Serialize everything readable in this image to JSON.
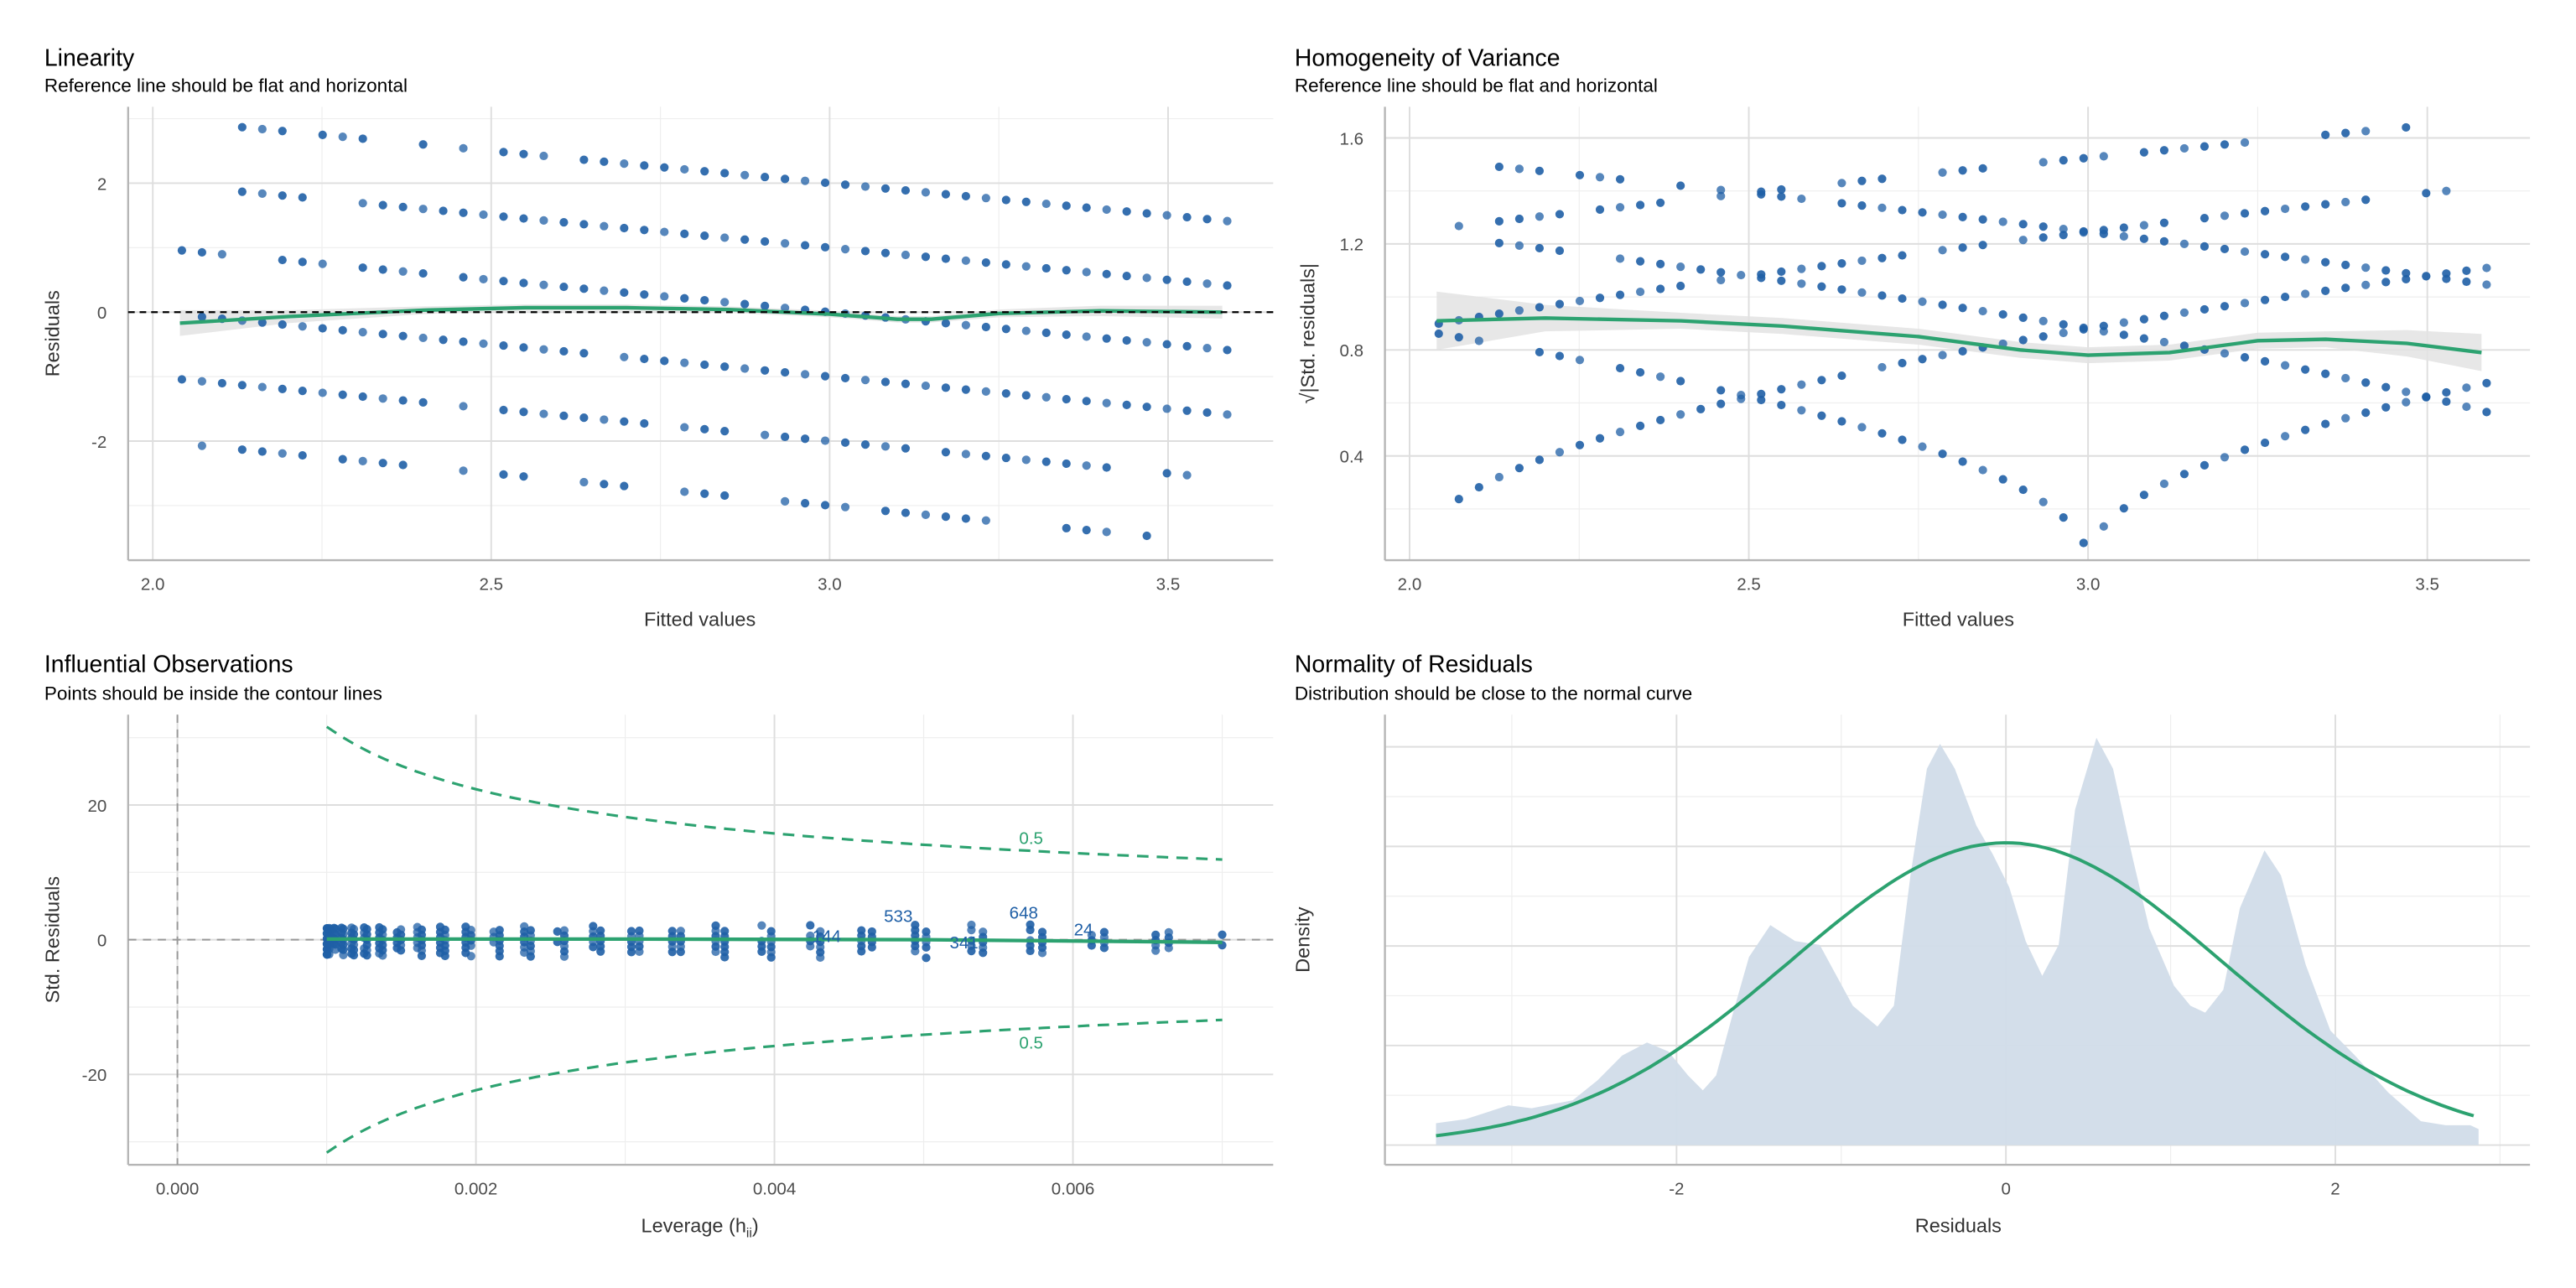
{
  "chart_data": [
    {
      "type": "scatter",
      "title": "Linearity",
      "subtitle": "Reference line should be flat and horizontal",
      "xlabel": "Fitted values",
      "ylabel": "Residuals",
      "xticks": [
        "2.0",
        "2.5",
        "3.0",
        "3.5"
      ],
      "xtick_values": [
        2.0,
        2.5,
        3.0,
        3.5
      ],
      "yticks": [
        "-2",
        "0",
        "2"
      ],
      "ytick_values": [
        -2,
        0,
        2
      ],
      "fitted_start": 2.043,
      "fitted_step": 0.0297,
      "fitted_count": 53,
      "observed_levels": {
        "5": [
          [
            3,
            5
          ],
          [
            7,
            9
          ],
          [
            12,
            12
          ],
          [
            14,
            14
          ],
          [
            16,
            18
          ],
          [
            20,
            52
          ]
        ],
        "4": [
          [
            3,
            6
          ],
          [
            9,
            52
          ]
        ],
        "3": [
          [
            0,
            2
          ],
          [
            5,
            7
          ],
          [
            9,
            12
          ],
          [
            14,
            52
          ]
        ],
        "2": [
          [
            1,
            20
          ],
          [
            22,
            52
          ]
        ],
        "1": [
          [
            0,
            12
          ],
          [
            14,
            14
          ],
          [
            16,
            23
          ],
          [
            25,
            27
          ],
          [
            29,
            36
          ],
          [
            38,
            46
          ],
          [
            49,
            50
          ]
        ],
        "0": [
          [
            1,
            1
          ],
          [
            3,
            6
          ],
          [
            8,
            11
          ],
          [
            14,
            14
          ],
          [
            16,
            17
          ],
          [
            20,
            22
          ],
          [
            25,
            27
          ],
          [
            30,
            33
          ],
          [
            35,
            40
          ],
          [
            44,
            46
          ],
          [
            48,
            48
          ]
        ]
      },
      "reference_line": 0,
      "smooth": [
        [
          2.04,
          -0.17
        ],
        [
          2.2,
          -0.07
        ],
        [
          2.4,
          0.03
        ],
        [
          2.55,
          0.07
        ],
        [
          2.7,
          0.07
        ],
        [
          2.85,
          0.04
        ],
        [
          3.0,
          -0.03
        ],
        [
          3.1,
          -0.11
        ],
        [
          3.15,
          -0.11
        ],
        [
          3.25,
          -0.02
        ],
        [
          3.4,
          0.02
        ],
        [
          3.58,
          0.0
        ]
      ],
      "smooth_band": [
        0.2,
        0.1,
        0.06,
        0.05,
        0.05,
        0.05,
        0.05,
        0.05,
        0.05,
        0.06,
        0.08,
        0.1
      ]
    },
    {
      "type": "scatter",
      "title": "Homogeneity of Variance",
      "subtitle": "Reference line should be flat and horizontal",
      "xlabel": "Fitted values",
      "ylabel": "√|Std. residuals|",
      "xticks": [
        "2.0",
        "2.5",
        "3.0",
        "3.5"
      ],
      "xtick_values": [
        2.0,
        2.5,
        3.0,
        3.5
      ],
      "yticks": [
        "0.4",
        "0.8",
        "1.2",
        "1.6"
      ],
      "ytick_values": [
        0.4,
        0.8,
        1.2,
        1.6
      ],
      "residual_sigma": 1.29,
      "smooth": [
        [
          2.04,
          0.91
        ],
        [
          2.2,
          0.92
        ],
        [
          2.4,
          0.91
        ],
        [
          2.55,
          0.89
        ],
        [
          2.75,
          0.85
        ],
        [
          2.9,
          0.8
        ],
        [
          3.0,
          0.78
        ],
        [
          3.12,
          0.79
        ],
        [
          3.25,
          0.835
        ],
        [
          3.35,
          0.84
        ],
        [
          3.47,
          0.825
        ],
        [
          3.58,
          0.79
        ]
      ],
      "smooth_band": [
        0.11,
        0.05,
        0.03,
        0.03,
        0.03,
        0.03,
        0.03,
        0.03,
        0.03,
        0.03,
        0.05,
        0.07
      ]
    },
    {
      "type": "scatter",
      "title": "Influential Observations",
      "subtitle": "Points should be inside the contour lines",
      "xlabel_main": "Leverage (h",
      "xlabel_sub": "ii",
      "xlabel_end": ")",
      "ylabel": "Std. Residuals",
      "xticks": [
        "0.000",
        "0.002",
        "0.004",
        "0.006"
      ],
      "xtick_values": [
        0,
        0.002,
        0.004,
        0.006
      ],
      "yticks": [
        "-20",
        "0",
        "20"
      ],
      "ytick_values": [
        -20,
        0,
        20
      ],
      "leverage_min": 0.001,
      "leverage_max": 0.007,
      "leverage_center_index": 26.4,
      "cook_level": 0.5,
      "n_params": 2,
      "contour_labels": [
        {
          "text": "0.5",
          "h": 0.00572,
          "s": 15.2
        },
        {
          "text": "0.5",
          "h": 0.00572,
          "s": -15.2
        }
      ],
      "point_labels": [
        {
          "text": "144",
          "h": 0.00435,
          "s": 0.6
        },
        {
          "text": "533",
          "h": 0.00483,
          "s": 3.6
        },
        {
          "text": "341",
          "h": 0.00527,
          "s": -0.3
        },
        {
          "text": "648",
          "h": 0.00567,
          "s": 4.1
        },
        {
          "text": "24",
          "h": 0.00607,
          "s": 1.6
        }
      ],
      "smooth": [
        [
          0.001,
          0.1
        ],
        [
          0.003,
          0.1
        ],
        [
          0.005,
          0.0
        ],
        [
          0.007,
          -0.4
        ]
      ]
    },
    {
      "type": "area",
      "title": "Normality of Residuals",
      "subtitle": "Distribution should be close to the normal curve",
      "xlabel": "Residuals",
      "ylabel": "Density",
      "xticks": [
        "-2",
        "0",
        "2"
      ],
      "xtick_values": [
        -2,
        0,
        2
      ],
      "normal_mean": 0,
      "normal_sd": 1.314,
      "density": [
        [
          -3.46,
          0.022
        ],
        [
          -3.28,
          0.026
        ],
        [
          -3.02,
          0.04
        ],
        [
          -2.88,
          0.037
        ],
        [
          -2.63,
          0.045
        ],
        [
          -2.48,
          0.065
        ],
        [
          -2.33,
          0.09
        ],
        [
          -2.18,
          0.103
        ],
        [
          -2.05,
          0.094
        ],
        [
          -1.93,
          0.07
        ],
        [
          -1.84,
          0.055
        ],
        [
          -1.76,
          0.07
        ],
        [
          -1.66,
          0.131
        ],
        [
          -1.56,
          0.189
        ],
        [
          -1.43,
          0.221
        ],
        [
          -1.28,
          0.205
        ],
        [
          -1.13,
          0.201
        ],
        [
          -0.93,
          0.14
        ],
        [
          -0.78,
          0.119
        ],
        [
          -0.68,
          0.14
        ],
        [
          -0.58,
          0.271
        ],
        [
          -0.48,
          0.378
        ],
        [
          -0.4,
          0.403
        ],
        [
          -0.31,
          0.378
        ],
        [
          -0.18,
          0.321
        ],
        [
          -0.08,
          0.292
        ],
        [
          0.02,
          0.259
        ],
        [
          0.12,
          0.205
        ],
        [
          0.22,
          0.17
        ],
        [
          0.32,
          0.201
        ],
        [
          0.42,
          0.337
        ],
        [
          0.55,
          0.409
        ],
        [
          0.65,
          0.378
        ],
        [
          0.77,
          0.288
        ],
        [
          0.87,
          0.218
        ],
        [
          1.02,
          0.16
        ],
        [
          1.12,
          0.14
        ],
        [
          1.21,
          0.133
        ],
        [
          1.32,
          0.156
        ],
        [
          1.42,
          0.238
        ],
        [
          1.57,
          0.296
        ],
        [
          1.67,
          0.271
        ],
        [
          1.82,
          0.181
        ],
        [
          1.97,
          0.115
        ],
        [
          2.12,
          0.09
        ],
        [
          2.32,
          0.053
        ],
        [
          2.52,
          0.024
        ],
        [
          2.67,
          0.02
        ],
        [
          2.82,
          0.02
        ],
        [
          2.87,
          0.016
        ]
      ]
    }
  ],
  "colors": {
    "point": "#1f5fa6",
    "smooth": "#2ca270",
    "band": "#e3e3e3",
    "density_fill": "#d1dce9",
    "grid_major": "#dedede",
    "grid_minor": "#eeeeee",
    "axis": "#b5b5b5"
  }
}
